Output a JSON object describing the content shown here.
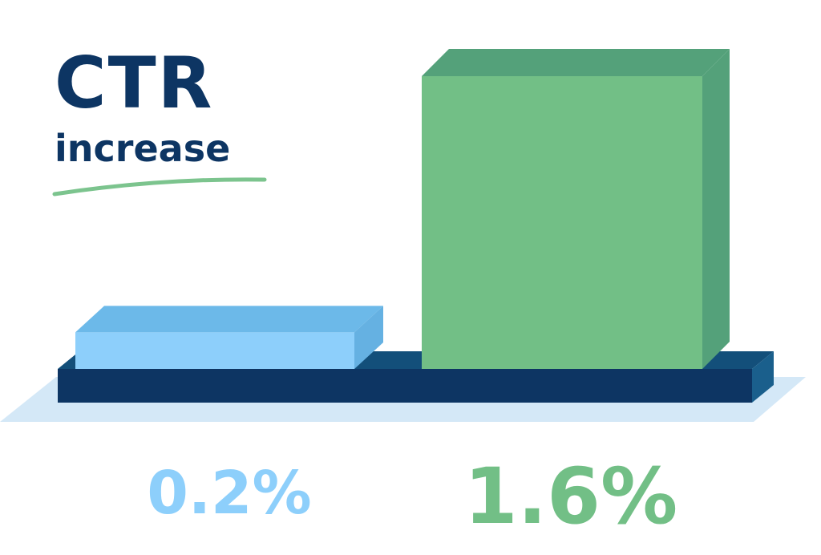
{
  "title": "CTR",
  "subtitle": "increase",
  "colors": {
    "title": "#0d3563",
    "underline": "#7cc48e",
    "floor_shadow": "#d4e8f7",
    "base_front": "#0d3563",
    "base_top": "#134f7a",
    "base_side": "#1a5f8c"
  },
  "chart_data": {
    "type": "bar",
    "categories": [
      "",
      ""
    ],
    "values": [
      0.2,
      1.6
    ],
    "value_labels": [
      "0.2%",
      "1.6%"
    ],
    "unit": "%",
    "ylim": [
      0,
      1.6
    ],
    "grid": false,
    "legend": "none",
    "bar_colors": [
      {
        "front": "#8dcffb",
        "top": "#6cb9e9",
        "side": "#65b1e2",
        "label": "#8dcffb"
      },
      {
        "front": "#72bf86",
        "top": "#54a17a",
        "side": "#54a17a",
        "label": "#72bf86"
      }
    ]
  }
}
